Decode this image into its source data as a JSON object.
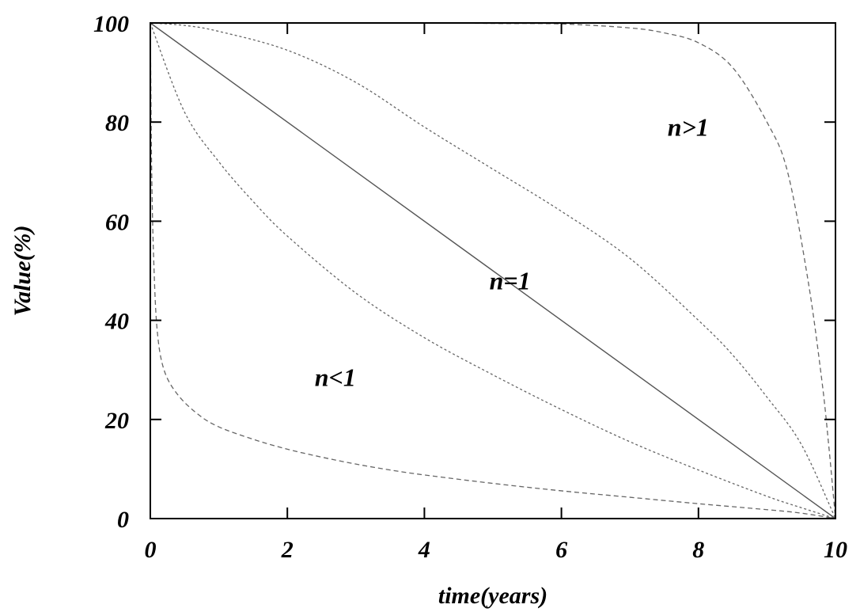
{
  "chart_data": {
    "type": "line",
    "title": "",
    "xlabel": "time(years)",
    "ylabel": "Value(%)",
    "xlim": [
      0,
      10
    ],
    "ylim": [
      0,
      100
    ],
    "xticks": [
      "0",
      "2",
      "4",
      "6",
      "8",
      "10"
    ],
    "yticks": [
      "0",
      "20",
      "40",
      "60",
      "80",
      "100"
    ],
    "grid": false,
    "legend": "none",
    "series": [
      {
        "line_style": "dashed",
        "x": [
          0,
          0.02,
          0.05,
          0.1,
          0.2,
          0.4,
          0.7,
          1,
          1.5,
          2,
          2.5,
          3,
          3.5,
          4,
          5,
          6,
          7,
          8,
          9,
          9.5,
          10
        ],
        "y": [
          100,
          70,
          52,
          38,
          30,
          25,
          21,
          18.5,
          16,
          14,
          12.4,
          11,
          9.8,
          8.8,
          7.1,
          5.6,
          4.3,
          3,
          1.8,
          1.1,
          0
        ]
      },
      {
        "line_style": "dotted",
        "x": [
          0,
          0.5,
          1,
          1.5,
          2,
          3,
          4,
          5,
          6,
          7,
          8,
          9,
          9.5,
          10
        ],
        "y": [
          100,
          82,
          72,
          64,
          57,
          45.5,
          36.5,
          29,
          22,
          15.5,
          9.8,
          4.5,
          2.2,
          0
        ]
      },
      {
        "line_style": "solid",
        "x": [
          0,
          10
        ],
        "y": [
          100,
          0
        ]
      },
      {
        "line_style": "dotted",
        "x": [
          0,
          0.5,
          1,
          2,
          3,
          4,
          5,
          6,
          7,
          8,
          8.5,
          9,
          9.5,
          10
        ],
        "y": [
          100,
          99.5,
          98.3,
          94.5,
          88,
          79,
          70.5,
          62,
          52.5,
          40,
          33,
          24.5,
          15,
          0
        ]
      },
      {
        "line_style": "dashed",
        "x": [
          0,
          1,
          2,
          3,
          4,
          5,
          6,
          7,
          7.5,
          8,
          8.5,
          9,
          9.3,
          9.6,
          9.8,
          9.9,
          10
        ],
        "y": [
          100,
          100,
          100,
          100,
          100,
          99.9,
          99.8,
          99,
          98,
          96,
          91,
          80,
          70,
          48,
          28,
          15,
          0
        ]
      }
    ],
    "annotations": [
      {
        "text": "n>1",
        "x": 7.85,
        "y": 79
      },
      {
        "text": "n=1",
        "x": 5.25,
        "y": 48
      },
      {
        "text": "n<1",
        "x": 2.7,
        "y": 28.5
      }
    ]
  }
}
